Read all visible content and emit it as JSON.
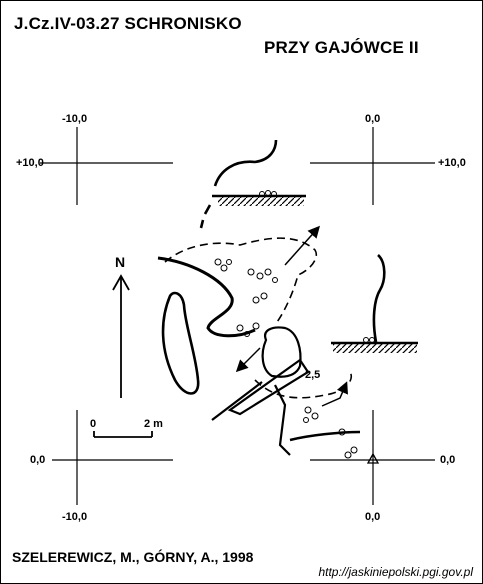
{
  "title": {
    "line1": "J.Cz.IV-03.27  SCHRONISKO",
    "line2": "PRZY GAJÓWCE II"
  },
  "grid_labels": {
    "top_left_x": "-10,0",
    "top_right_x": "0,0",
    "left_top_y": "+10,0",
    "right_top_y": "+10,0",
    "left_bottom_y": "0,0",
    "right_bottom_y": "0,0",
    "bottom_left_x": "-10,0",
    "bottom_right_x": "0,0"
  },
  "north": "N",
  "scale": {
    "start": "0",
    "end": "2 m"
  },
  "depth_label": "2,5",
  "credit": "SZELEREWICZ, M., GÓRNY, A., 1998",
  "url": "http://jaskiniepolski.pgi.gov.pl"
}
